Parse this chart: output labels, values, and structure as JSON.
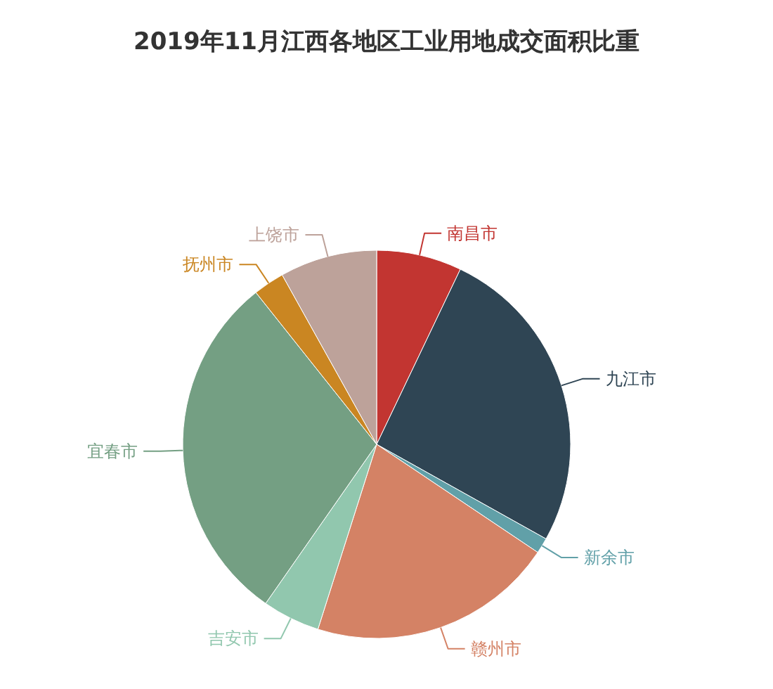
{
  "chart_data": {
    "type": "pie",
    "title": "2019年11月江西各地区工业用地成交面积比重",
    "categories": [
      "南昌市",
      "九江市",
      "新余市",
      "赣州市",
      "吉安市",
      "宜春市",
      "抚州市",
      "上饶市"
    ],
    "values": [
      7.1,
      26,
      1.3,
      20.5,
      4.8,
      29.6,
      2.6,
      8.1
    ],
    "colors": [
      "#c23531",
      "#2f4554",
      "#61a0a8",
      "#d48265",
      "#91c7ae",
      "#749f83",
      "#ca8622",
      "#bda29a"
    ]
  }
}
